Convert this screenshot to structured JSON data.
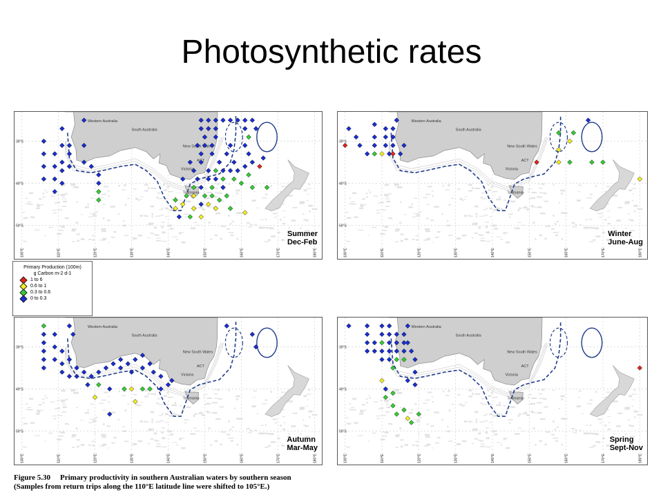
{
  "slide": {
    "title": "Photosynthetic rates"
  },
  "legend": {
    "title_line1": "Primary Production (100m)",
    "title_line2": "g Carbon m-2 d-1",
    "items": [
      {
        "label": "1    to 6",
        "color": "#e0241c"
      },
      {
        "label": "0.6 to 1",
        "color": "#f3ee22"
      },
      {
        "label": "0.3 to 0.6",
        "color": "#34cc33"
      },
      {
        "label": "0    to 0.3",
        "color": "#1a2ed0"
      }
    ]
  },
  "map_labels": {
    "western_australia": "Western Australia",
    "south_australia": "South Australia",
    "new_south_wales": "New South Wales",
    "act": "ACT",
    "victoria": "Victoria",
    "tasmania": "Tasmania",
    "lat_30": "30°S",
    "lat_40": "40°S",
    "lat_50": "50°S",
    "lon_ticks": [
      "100°E",
      "110°E",
      "120°E",
      "130°E",
      "140°E",
      "150°E",
      "160°E",
      "170°E",
      "180°E"
    ]
  },
  "panels": [
    {
      "id": "summer",
      "season": "Summer",
      "months": "Dec-Feb"
    },
    {
      "id": "winter",
      "season": "Winter",
      "months": "June-Aug"
    },
    {
      "id": "autumn",
      "season": "Autumn",
      "months": "Mar-May"
    },
    {
      "id": "spring",
      "season": "Spring",
      "months": "Sept-Nov"
    }
  ],
  "caption": {
    "figure": "Figure 5.30",
    "line1": "Primary productivity in southern Australian waters by southern season",
    "line2": "(Samples from return trips along the 110°E latitude line were shifted to 105°E.)"
  },
  "stations": {
    "summer": [
      [
        106,
        -30,
        "b"
      ],
      [
        106,
        -33,
        "b"
      ],
      [
        106,
        -36,
        "b"
      ],
      [
        106,
        -39,
        "b"
      ],
      [
        109,
        -33,
        "b"
      ],
      [
        109,
        -36,
        "b"
      ],
      [
        109,
        -39,
        "b"
      ],
      [
        109,
        -42,
        "b"
      ],
      [
        111,
        -27,
        "b"
      ],
      [
        111,
        -31,
        "b"
      ],
      [
        111,
        -35,
        "b"
      ],
      [
        111,
        -37,
        "b"
      ],
      [
        111,
        -40,
        "b"
      ],
      [
        113,
        -31,
        "b"
      ],
      [
        113,
        -33,
        "b"
      ],
      [
        113,
        -36,
        "b"
      ],
      [
        117,
        -25,
        "b"
      ],
      [
        117,
        -31,
        "b"
      ],
      [
        117,
        -35,
        "b"
      ],
      [
        119,
        -36,
        "b"
      ],
      [
        121,
        -38,
        "b"
      ],
      [
        121,
        -40,
        "b"
      ],
      [
        121,
        -42,
        "g"
      ],
      [
        121,
        -44,
        "g"
      ],
      [
        149,
        -25,
        "b"
      ],
      [
        151,
        -25,
        "b"
      ],
      [
        153,
        -25,
        "b"
      ],
      [
        155,
        -25,
        "b"
      ],
      [
        157,
        -25,
        "b"
      ],
      [
        159,
        -25,
        "b"
      ],
      [
        161,
        -25,
        "b"
      ],
      [
        163,
        -25,
        "b"
      ],
      [
        149,
        -27,
        "b"
      ],
      [
        151,
        -27,
        "b"
      ],
      [
        153,
        -27,
        "b"
      ],
      [
        161,
        -27,
        "b"
      ],
      [
        164,
        -27,
        "b"
      ],
      [
        150,
        -29,
        "b"
      ],
      [
        153,
        -29,
        "b"
      ],
      [
        162,
        -29,
        "g"
      ],
      [
        148,
        -31,
        "b"
      ],
      [
        150,
        -31,
        "b"
      ],
      [
        152,
        -31,
        "b"
      ],
      [
        157,
        -31,
        "b"
      ],
      [
        161,
        -31,
        "b"
      ],
      [
        149,
        -33,
        "b"
      ],
      [
        152,
        -33,
        "b"
      ],
      [
        156,
        -33,
        "b"
      ],
      [
        162,
        -33,
        "b"
      ],
      [
        146,
        -35,
        "b"
      ],
      [
        149,
        -35,
        "b"
      ],
      [
        154,
        -35,
        "b"
      ],
      [
        158,
        -35,
        "b"
      ],
      [
        147,
        -37,
        "b"
      ],
      [
        151,
        -37,
        "b"
      ],
      [
        153,
        -37,
        "g"
      ],
      [
        155,
        -37,
        "b"
      ],
      [
        157,
        -37,
        "b"
      ],
      [
        159,
        -37,
        "b"
      ],
      [
        161,
        -36,
        "b"
      ],
      [
        163,
        -35,
        "b"
      ],
      [
        165,
        -36,
        "r"
      ],
      [
        166,
        -34,
        "b"
      ],
      [
        144,
        -39,
        "b"
      ],
      [
        148,
        -39,
        "b"
      ],
      [
        151,
        -39,
        "b"
      ],
      [
        153,
        -39,
        "b"
      ],
      [
        155,
        -39,
        "g"
      ],
      [
        158,
        -39,
        "g"
      ],
      [
        162,
        -38,
        "g"
      ],
      [
        147,
        -41,
        "g"
      ],
      [
        149,
        -41,
        "b"
      ],
      [
        152,
        -41,
        "g"
      ],
      [
        155,
        -41,
        "b"
      ],
      [
        160,
        -40,
        "g"
      ],
      [
        163,
        -41,
        "g"
      ],
      [
        167,
        -41,
        "g"
      ],
      [
        145,
        -43,
        "g"
      ],
      [
        147,
        -43,
        "y"
      ],
      [
        150,
        -43,
        "g"
      ],
      [
        152,
        -43,
        "g"
      ],
      [
        154,
        -44,
        "g"
      ],
      [
        156,
        -43,
        "g"
      ],
      [
        142,
        -44,
        "g"
      ],
      [
        144,
        -45,
        "y"
      ],
      [
        147,
        -46,
        "y"
      ],
      [
        149,
        -45,
        "b"
      ],
      [
        151,
        -45,
        "y"
      ],
      [
        153,
        -46,
        "y"
      ],
      [
        157,
        -46,
        "g"
      ],
      [
        161,
        -47,
        "y"
      ],
      [
        142,
        -46,
        "y"
      ],
      [
        143,
        -48,
        "b"
      ],
      [
        146,
        -48,
        "g"
      ],
      [
        149,
        -48,
        "y"
      ]
    ],
    "winter": [
      [
        101,
        -27,
        "b"
      ],
      [
        103,
        -29,
        "b"
      ],
      [
        100,
        -31,
        "r"
      ],
      [
        104,
        -31,
        "b"
      ],
      [
        106,
        -33,
        "b"
      ],
      [
        108,
        -33,
        "g"
      ],
      [
        108,
        -31,
        "b"
      ],
      [
        108,
        -29,
        "b"
      ],
      [
        108,
        -26,
        "b"
      ],
      [
        110,
        -33,
        "y"
      ],
      [
        111,
        -31,
        "b"
      ],
      [
        111,
        -29,
        "b"
      ],
      [
        111,
        -27,
        "b"
      ],
      [
        112,
        -33,
        "b"
      ],
      [
        113,
        -33,
        "r"
      ],
      [
        113,
        -31,
        "b"
      ],
      [
        113,
        -29,
        "b"
      ],
      [
        113,
        -27,
        "b"
      ],
      [
        114,
        -25,
        "b"
      ],
      [
        115,
        -33,
        "b"
      ],
      [
        116,
        -31,
        "b"
      ],
      [
        152,
        -35,
        "r"
      ],
      [
        158,
        -32,
        "y"
      ],
      [
        158,
        -35,
        "y"
      ],
      [
        161,
        -35,
        "g"
      ],
      [
        158,
        -28,
        "g"
      ],
      [
        161,
        -30,
        "y"
      ],
      [
        162,
        -28,
        "g"
      ],
      [
        167,
        -35,
        "g"
      ],
      [
        170,
        -35,
        "g"
      ],
      [
        166,
        -25,
        "b"
      ],
      [
        180,
        -39,
        "y"
      ]
    ],
    "autumn": [
      [
        106,
        -25,
        "g"
      ],
      [
        106,
        -27,
        "b"
      ],
      [
        106,
        -29,
        "b"
      ],
      [
        106,
        -31,
        "b"
      ],
      [
        106,
        -33,
        "b"
      ],
      [
        106,
        -35,
        "b"
      ],
      [
        109,
        -27,
        "b"
      ],
      [
        109,
        -30,
        "b"
      ],
      [
        109,
        -33,
        "b"
      ],
      [
        111,
        -31,
        "b"
      ],
      [
        111,
        -34,
        "b"
      ],
      [
        111,
        -36,
        "b"
      ],
      [
        113,
        -33,
        "b"
      ],
      [
        113,
        -37,
        "b"
      ],
      [
        115,
        -35,
        "b"
      ],
      [
        115,
        -37,
        "b"
      ],
      [
        117,
        -36,
        "b"
      ],
      [
        119,
        -37,
        "b"
      ],
      [
        121,
        -36,
        "b"
      ],
      [
        123,
        -35,
        "b"
      ],
      [
        125,
        -34,
        "b"
      ],
      [
        127,
        -33,
        "b"
      ],
      [
        129,
        -34,
        "b"
      ],
      [
        131,
        -33,
        "b"
      ],
      [
        133,
        -32,
        "b"
      ],
      [
        127,
        -35,
        "b"
      ],
      [
        130,
        -36,
        "b"
      ],
      [
        133,
        -35,
        "b"
      ],
      [
        135,
        -34,
        "b"
      ],
      [
        136,
        -36,
        "b"
      ],
      [
        138,
        -37,
        "b"
      ],
      [
        140,
        -39,
        "b"
      ],
      [
        141,
        -38,
        "b"
      ],
      [
        118,
        -39,
        "b"
      ],
      [
        121,
        -39,
        "g"
      ],
      [
        120,
        -42,
        "y"
      ],
      [
        124,
        -40,
        "b"
      ],
      [
        124,
        -46,
        "b"
      ],
      [
        128,
        -40,
        "g"
      ],
      [
        130,
        -40,
        "y"
      ],
      [
        133,
        -40,
        "g"
      ],
      [
        135,
        -40,
        "g"
      ],
      [
        138,
        -40,
        "b"
      ],
      [
        131,
        -43,
        "y"
      ],
      [
        113,
        -25,
        "b"
      ],
      [
        114,
        -27,
        "b"
      ],
      [
        156,
        -25,
        "b"
      ],
      [
        163,
        -27,
        "b"
      ],
      [
        164,
        -30,
        "b"
      ]
    ],
    "spring": [
      [
        101,
        -25,
        "b"
      ],
      [
        106,
        -25,
        "b"
      ],
      [
        106,
        -27,
        "b"
      ],
      [
        106,
        -29,
        "b"
      ],
      [
        106,
        -31,
        "b"
      ],
      [
        108,
        -29,
        "b"
      ],
      [
        108,
        -31,
        "b"
      ],
      [
        110,
        -25,
        "b"
      ],
      [
        110,
        -27,
        "b"
      ],
      [
        110,
        -29,
        "g"
      ],
      [
        110,
        -31,
        "b"
      ],
      [
        110,
        -33,
        "b"
      ],
      [
        112,
        -25,
        "b"
      ],
      [
        112,
        -27,
        "b"
      ],
      [
        112,
        -29,
        "b"
      ],
      [
        112,
        -31,
        "b"
      ],
      [
        112,
        -33,
        "b"
      ],
      [
        114,
        -27,
        "b"
      ],
      [
        114,
        -29,
        "b"
      ],
      [
        114,
        -31,
        "b"
      ],
      [
        114,
        -33,
        "g"
      ],
      [
        116,
        -27,
        "b"
      ],
      [
        116,
        -29,
        "b"
      ],
      [
        116,
        -31,
        "b"
      ],
      [
        117,
        -25,
        "b"
      ],
      [
        117,
        -29,
        "b"
      ],
      [
        118,
        -31,
        "b"
      ],
      [
        119,
        -33,
        "b"
      ],
      [
        113,
        -35,
        "g"
      ],
      [
        116,
        -33,
        "g"
      ],
      [
        119,
        -36,
        "b"
      ],
      [
        117,
        -38,
        "b"
      ],
      [
        119,
        -39,
        "b"
      ],
      [
        110,
        -38,
        "y"
      ],
      [
        111,
        -40,
        "b"
      ],
      [
        113,
        -41,
        "g"
      ],
      [
        111,
        -42,
        "g"
      ],
      [
        113,
        -44,
        "g"
      ],
      [
        114,
        -46,
        "g"
      ],
      [
        116,
        -45,
        "g"
      ],
      [
        117,
        -47,
        "y"
      ],
      [
        120,
        -46,
        "g"
      ],
      [
        118,
        -48,
        "g"
      ],
      [
        180,
        -35,
        "r"
      ]
    ]
  }
}
